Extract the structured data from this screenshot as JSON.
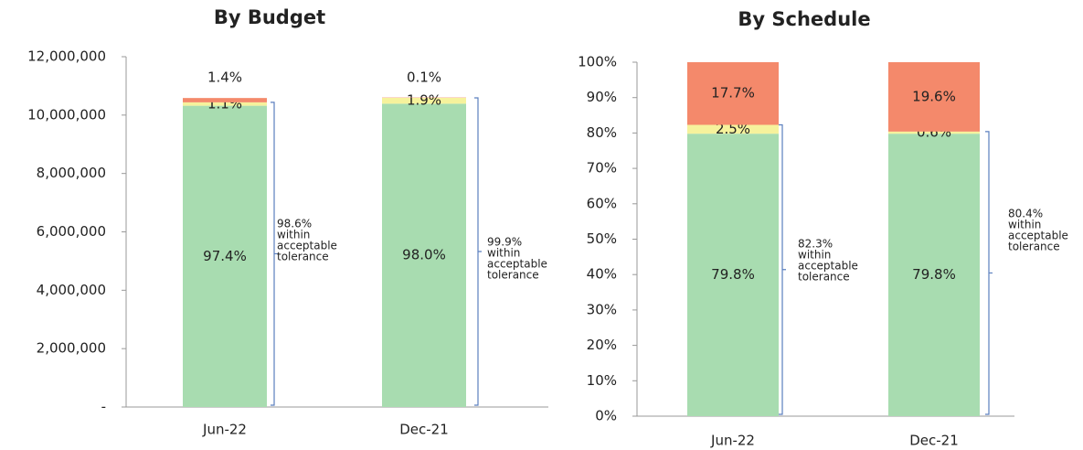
{
  "chart_data": [
    {
      "type": "stacked_bar",
      "title": "By Budget",
      "categories": [
        "Jun-22",
        "Dec-21"
      ],
      "series": [
        {
          "color": "#a8dcb0",
          "values": [
            10320000,
            10390000
          ],
          "value_labels": [
            "97.4%",
            "98.0%"
          ]
        },
        {
          "color": "#f6f29c",
          "values": [
            117000,
            200000
          ],
          "value_labels": [
            "1.1%",
            "1.9%"
          ]
        },
        {
          "color": "#f4896b",
          "values": [
            148000,
            11000
          ],
          "value_labels": [
            "1.4%",
            "0.1%"
          ]
        }
      ],
      "ylim": [
        0,
        12000000
      ],
      "yticks": [
        {
          "value": 0,
          "label": "-"
        },
        {
          "value": 2000000,
          "label": "2,000,000"
        },
        {
          "value": 4000000,
          "label": "4,000,000"
        },
        {
          "value": 6000000,
          "label": "6,000,000"
        },
        {
          "value": 8000000,
          "label": "8,000,000"
        },
        {
          "value": 10000000,
          "label": "10,000,000"
        },
        {
          "value": 12000000,
          "label": "12,000,000"
        }
      ],
      "annotations": [
        {
          "lines": [
            "98.6%",
            "within",
            "acceptable",
            "tolerance"
          ]
        },
        {
          "lines": [
            "99.9%",
            "within",
            "acceptable",
            "tolerance"
          ]
        }
      ]
    },
    {
      "type": "stacked_bar",
      "title": "By Schedule",
      "categories": [
        "Jun-22",
        "Dec-21"
      ],
      "series": [
        {
          "color": "#a8dcb0",
          "values": [
            79.8,
            79.8
          ],
          "value_labels": [
            "79.8%",
            "79.8%"
          ]
        },
        {
          "color": "#f6f29c",
          "values": [
            2.5,
            0.6
          ],
          "value_labels": [
            "2.5%",
            "0.6%"
          ]
        },
        {
          "color": "#f4896b",
          "values": [
            17.7,
            19.6
          ],
          "value_labels": [
            "17.7%",
            "19.6%"
          ]
        }
      ],
      "ylim": [
        0,
        100
      ],
      "yticks": [
        {
          "value": 0,
          "label": "0%"
        },
        {
          "value": 10,
          "label": "10%"
        },
        {
          "value": 20,
          "label": "20%"
        },
        {
          "value": 30,
          "label": "30%"
        },
        {
          "value": 40,
          "label": "40%"
        },
        {
          "value": 50,
          "label": "50%"
        },
        {
          "value": 60,
          "label": "60%"
        },
        {
          "value": 70,
          "label": "70%"
        },
        {
          "value": 80,
          "label": "80%"
        },
        {
          "value": 90,
          "label": "90%"
        },
        {
          "value": 100,
          "label": "100%"
        }
      ],
      "annotations": [
        {
          "lines": [
            "82.3%",
            "within",
            "acceptable",
            "tolerance"
          ]
        },
        {
          "lines": [
            "80.4%",
            "within",
            "acceptable",
            "tolerance"
          ]
        }
      ]
    }
  ]
}
